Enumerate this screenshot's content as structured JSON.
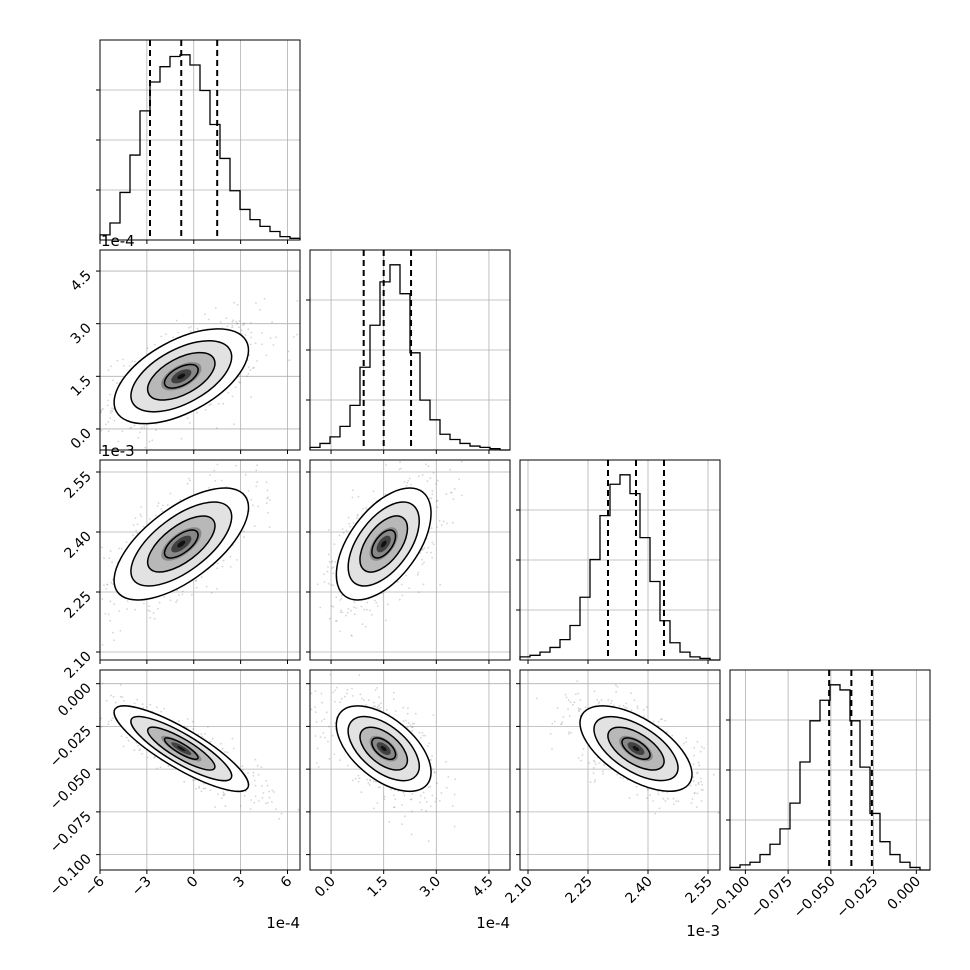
{
  "chart_data": {
    "type": "corner",
    "n_params": 4,
    "params": [
      {
        "range": [
          -0.0006,
          0.00068
        ],
        "ticks": [
          -6,
          -3,
          0,
          3,
          6
        ],
        "scale_label": "1e-4",
        "quantiles": [
          -0.00028,
          -8e-05,
          0.00015
        ]
      },
      {
        "range": [
          -6e-05,
          0.00051
        ],
        "ticks": [
          0.0,
          1.5,
          3.0,
          4.5
        ],
        "scale_label": "1e-4",
        "quantiles": [
          9.3e-05,
          0.00015,
          0.000228
        ]
      },
      {
        "range": [
          0.00208,
          0.00258
        ],
        "ticks": [
          2.1,
          2.25,
          2.4,
          2.55
        ],
        "scale_label": "1e-3",
        "quantiles": [
          0.0023,
          0.00237,
          0.00244
        ]
      },
      {
        "range": [
          -0.109,
          0.008
        ],
        "ticks": [
          -0.1,
          -0.075,
          -0.05,
          -0.025,
          0.0
        ],
        "scale_label": "",
        "quantiles": [
          -0.051,
          -0.038,
          -0.026
        ]
      }
    ],
    "tick_labels": {
      "p0": [
        "−6",
        "−3",
        "0",
        "3",
        "6"
      ],
      "p1": [
        "0.0",
        "1.5",
        "3.0",
        "4.5"
      ],
      "p2": [
        "2.10",
        "2.25",
        "2.40",
        "2.55"
      ],
      "p3": [
        "−0.100",
        "−0.075",
        "−0.050",
        "−0.025",
        "0.000"
      ]
    },
    "scale_labels": {
      "e4": "1e-4",
      "e3": "1e-3"
    },
    "histograms": [
      {
        "param": 0,
        "counts": [
          3,
          10,
          28,
          50,
          76,
          93,
          102,
          108,
          109,
          103,
          88,
          68,
          48,
          29,
          18,
          12,
          8,
          5,
          2,
          1
        ]
      },
      {
        "param": 1,
        "counts": [
          2,
          5,
          10,
          18,
          34,
          63,
          95,
          128,
          141,
          119,
          74,
          38,
          23,
          12,
          8,
          5,
          3,
          2,
          1,
          0
        ]
      },
      {
        "param": 2,
        "counts": [
          2,
          3,
          5,
          8,
          13,
          22,
          40,
          64,
          92,
          112,
          118,
          106,
          78,
          50,
          25,
          11,
          5,
          2,
          1,
          0
        ]
      },
      {
        "param": 3,
        "counts": [
          1,
          2,
          3,
          6,
          10,
          16,
          26,
          42,
          58,
          66,
          72,
          70,
          58,
          40,
          22,
          11,
          6,
          3,
          1,
          0
        ]
      }
    ],
    "pairs": [
      {
        "x": 0,
        "y": 1,
        "corr": 0.55
      },
      {
        "x": 0,
        "y": 2,
        "corr": 0.65
      },
      {
        "x": 1,
        "y": 2,
        "corr": 0.55
      },
      {
        "x": 0,
        "y": 3,
        "corr": -0.85
      },
      {
        "x": 1,
        "y": 3,
        "corr": -0.55
      },
      {
        "x": 2,
        "y": 3,
        "corr": -0.6
      }
    ],
    "grid": true
  }
}
